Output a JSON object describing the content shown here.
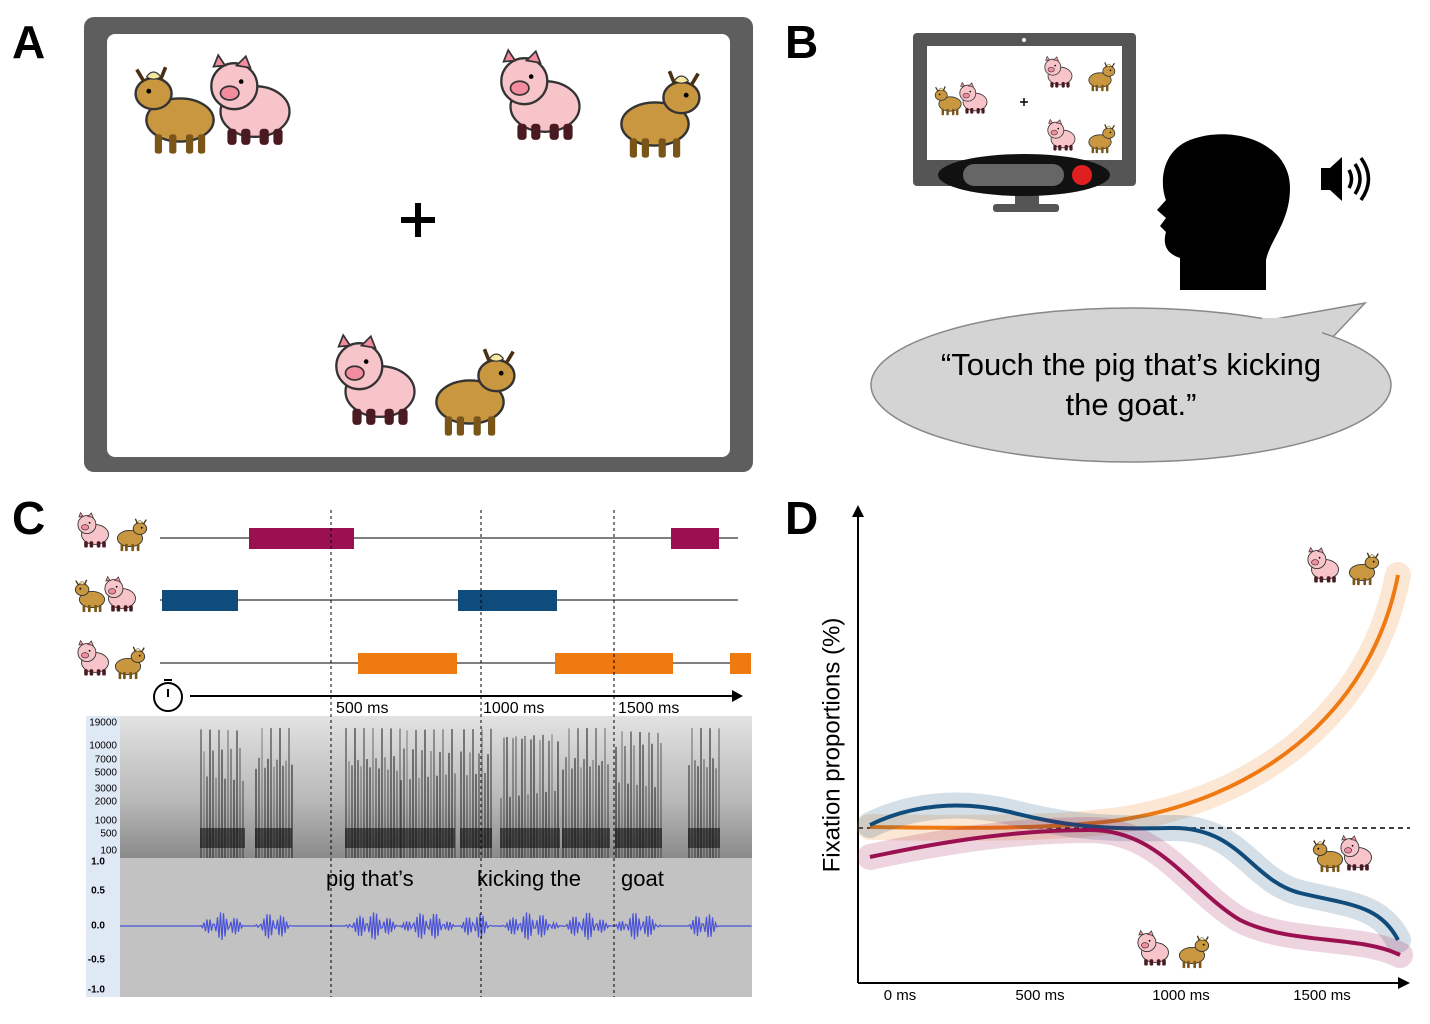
{
  "panels": {
    "a": {
      "label": "A"
    },
    "b": {
      "label": "B",
      "speech": [
        "“Touch the pig that’s kicking",
        "the goat.”"
      ]
    },
    "c": {
      "label": "C",
      "time_ticks": [
        "500 ms",
        "1000 ms",
        "1500 ms"
      ],
      "frequency_ticks": [
        "19000",
        "10000",
        "7000",
        "5000",
        "3000",
        "2000",
        "1000",
        "500",
        "100"
      ],
      "amplitude_ticks": [
        "1.0",
        "0.5",
        "0.0",
        "-0.5",
        "-1.0"
      ],
      "words": [
        "pig that’s",
        "kicking the",
        "goat"
      ]
    },
    "d": {
      "label": "D",
      "y_label": "Fixation proportions (%)",
      "x_ticks": [
        "0 ms",
        "500 ms",
        "1000 ms",
        "1500 ms"
      ]
    }
  }
}
